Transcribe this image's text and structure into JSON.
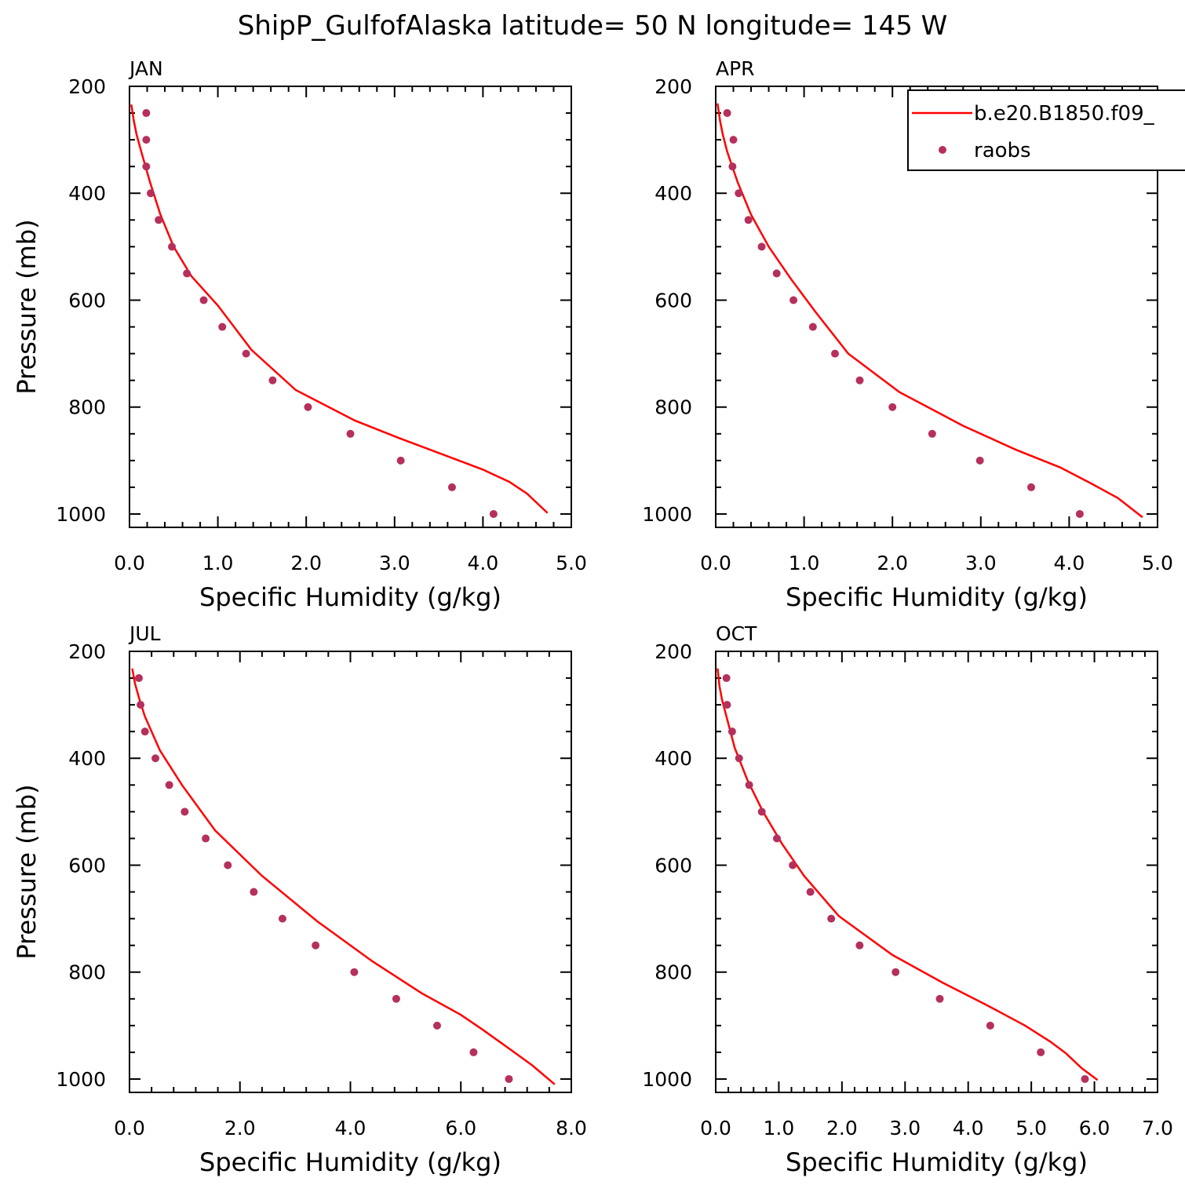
{
  "title": "ShipP_GulfofAlaska  latitude= 50 N longitude= 145 W",
  "colors": {
    "model_line": "#ff0000",
    "raobs_dot": "#b5305c",
    "axes": "#000000"
  },
  "legend": {
    "placement": "top-right, inside APR panel (clipped at figure edge)",
    "entries": [
      {
        "label": "b.e20.B1850.f09_",
        "marker": "line"
      },
      {
        "label": "raobs",
        "marker": "dot"
      }
    ]
  },
  "chart_data": [
    {
      "type": "line+scatter",
      "label": "JAN",
      "xlabel": "Specific Humidity (g/kg)",
      "ylabel": "Pressure (mb)",
      "xlim": [
        0,
        5
      ],
      "ylim": [
        1025,
        200
      ],
      "y_inverted": true,
      "xticks": [
        "0.0",
        "1.0",
        "2.0",
        "3.0",
        "4.0",
        "5.0"
      ],
      "yticks": [
        "200",
        "400",
        "600",
        "800",
        "1000"
      ],
      "series": [
        {
          "name": "b.e20.B1850.f09_",
          "style": "line",
          "points": [
            [
              0.02,
              234
            ],
            [
              0.05,
              265
            ],
            [
              0.08,
              290
            ],
            [
              0.13,
              320
            ],
            [
              0.23,
              378
            ],
            [
              0.35,
              440
            ],
            [
              0.5,
              500
            ],
            [
              0.7,
              555
            ],
            [
              1.0,
              610
            ],
            [
              1.38,
              693
            ],
            [
              1.88,
              768
            ],
            [
              2.55,
              825
            ],
            [
              3.05,
              858
            ],
            [
              3.6,
              892
            ],
            [
              4.0,
              917
            ],
            [
              4.3,
              940
            ],
            [
              4.5,
              962
            ],
            [
              4.73,
              998
            ]
          ]
        },
        {
          "name": "raobs",
          "style": "dot",
          "points": [
            [
              0.19,
              250
            ],
            [
              0.19,
              300
            ],
            [
              0.19,
              350
            ],
            [
              0.24,
              400
            ],
            [
              0.33,
              450
            ],
            [
              0.48,
              500
            ],
            [
              0.65,
              550
            ],
            [
              0.84,
              600
            ],
            [
              1.05,
              650
            ],
            [
              1.32,
              700
            ],
            [
              1.62,
              750
            ],
            [
              2.02,
              800
            ],
            [
              2.5,
              850
            ],
            [
              3.07,
              900
            ],
            [
              3.65,
              950
            ],
            [
              4.12,
              1000
            ]
          ]
        }
      ]
    },
    {
      "type": "line+scatter",
      "label": "APR",
      "xlabel": "Specific Humidity (g/kg)",
      "ylabel": "",
      "xlim": [
        0,
        5
      ],
      "ylim": [
        1025,
        200
      ],
      "y_inverted": true,
      "xticks": [
        "0.0",
        "1.0",
        "2.0",
        "3.0",
        "4.0",
        "5.0"
      ],
      "yticks": [
        "200",
        "400",
        "600",
        "800",
        "1000"
      ],
      "series": [
        {
          "name": "b.e20.B1850.f09_",
          "style": "line",
          "points": [
            [
              0.02,
              232
            ],
            [
              0.05,
              265
            ],
            [
              0.08,
              290
            ],
            [
              0.13,
              322
            ],
            [
              0.25,
              380
            ],
            [
              0.4,
              440
            ],
            [
              0.6,
              500
            ],
            [
              0.85,
              560
            ],
            [
              1.12,
              620
            ],
            [
              1.5,
              700
            ],
            [
              2.08,
              772
            ],
            [
              2.8,
              835
            ],
            [
              3.4,
              880
            ],
            [
              3.9,
              913
            ],
            [
              4.25,
              943
            ],
            [
              4.55,
              970
            ],
            [
              4.83,
              1006
            ]
          ]
        },
        {
          "name": "raobs",
          "style": "dot",
          "points": [
            [
              0.13,
              250
            ],
            [
              0.2,
              300
            ],
            [
              0.19,
              350
            ],
            [
              0.26,
              400
            ],
            [
              0.37,
              450
            ],
            [
              0.52,
              500
            ],
            [
              0.69,
              550
            ],
            [
              0.88,
              600
            ],
            [
              1.1,
              650
            ],
            [
              1.35,
              700
            ],
            [
              1.63,
              750
            ],
            [
              2.0,
              800
            ],
            [
              2.45,
              850
            ],
            [
              2.99,
              900
            ],
            [
              3.57,
              950
            ],
            [
              4.12,
              1000
            ]
          ]
        }
      ]
    },
    {
      "type": "line+scatter",
      "label": "JUL",
      "xlabel": "Specific Humidity (g/kg)",
      "ylabel": "Pressure (mb)",
      "xlim": [
        0,
        8
      ],
      "ylim": [
        1025,
        200
      ],
      "y_inverted": true,
      "xticks": [
        "0.0",
        "2.0",
        "4.0",
        "6.0",
        "8.0"
      ],
      "yticks": [
        "200",
        "400",
        "600",
        "800",
        "1000"
      ],
      "series": [
        {
          "name": "b.e20.B1850.f09_",
          "style": "line",
          "points": [
            [
              0.05,
              232
            ],
            [
              0.1,
              260
            ],
            [
              0.18,
              290
            ],
            [
              0.28,
              322
            ],
            [
              0.55,
              385
            ],
            [
              0.95,
              450
            ],
            [
              1.55,
              535
            ],
            [
              2.4,
              620
            ],
            [
              3.4,
              705
            ],
            [
              4.4,
              780
            ],
            [
              5.3,
              840
            ],
            [
              6.0,
              880
            ],
            [
              6.4,
              908
            ],
            [
              6.9,
              945
            ],
            [
              7.3,
              975
            ],
            [
              7.7,
              1010
            ]
          ]
        },
        {
          "name": "raobs",
          "style": "dot",
          "points": [
            [
              0.17,
              250
            ],
            [
              0.2,
              300
            ],
            [
              0.28,
              350
            ],
            [
              0.47,
              400
            ],
            [
              0.72,
              450
            ],
            [
              1.0,
              500
            ],
            [
              1.38,
              550
            ],
            [
              1.78,
              600
            ],
            [
              2.25,
              650
            ],
            [
              2.77,
              700
            ],
            [
              3.37,
              750
            ],
            [
              4.07,
              800
            ],
            [
              4.83,
              850
            ],
            [
              5.57,
              900
            ],
            [
              6.23,
              950
            ],
            [
              6.87,
              1000
            ]
          ]
        }
      ]
    },
    {
      "type": "line+scatter",
      "label": "OCT",
      "xlabel": "Specific Humidity (g/kg)",
      "ylabel": "",
      "xlim": [
        0,
        7
      ],
      "ylim": [
        1025,
        200
      ],
      "y_inverted": true,
      "xticks": [
        "0.0",
        "1.0",
        "2.0",
        "3.0",
        "4.0",
        "5.0",
        "6.0",
        "7.0"
      ],
      "yticks": [
        "200",
        "400",
        "600",
        "800",
        "1000"
      ],
      "series": [
        {
          "name": "b.e20.B1850.f09_",
          "style": "line",
          "points": [
            [
              0.03,
              232
            ],
            [
              0.06,
              265
            ],
            [
              0.1,
              290
            ],
            [
              0.17,
              322
            ],
            [
              0.3,
              380
            ],
            [
              0.5,
              440
            ],
            [
              0.75,
              500
            ],
            [
              1.05,
              560
            ],
            [
              1.4,
              620
            ],
            [
              1.95,
              695
            ],
            [
              2.8,
              768
            ],
            [
              3.6,
              820
            ],
            [
              4.3,
              862
            ],
            [
              4.9,
              900
            ],
            [
              5.3,
              930
            ],
            [
              5.55,
              952
            ],
            [
              5.8,
              980
            ],
            [
              6.05,
              1002
            ]
          ]
        },
        {
          "name": "raobs",
          "style": "dot",
          "points": [
            [
              0.17,
              250
            ],
            [
              0.18,
              300
            ],
            [
              0.26,
              350
            ],
            [
              0.37,
              400
            ],
            [
              0.53,
              450
            ],
            [
              0.73,
              500
            ],
            [
              0.97,
              550
            ],
            [
              1.22,
              600
            ],
            [
              1.5,
              650
            ],
            [
              1.83,
              700
            ],
            [
              2.28,
              750
            ],
            [
              2.85,
              800
            ],
            [
              3.55,
              850
            ],
            [
              4.35,
              900
            ],
            [
              5.15,
              950
            ],
            [
              5.85,
              1000
            ]
          ]
        }
      ]
    }
  ]
}
